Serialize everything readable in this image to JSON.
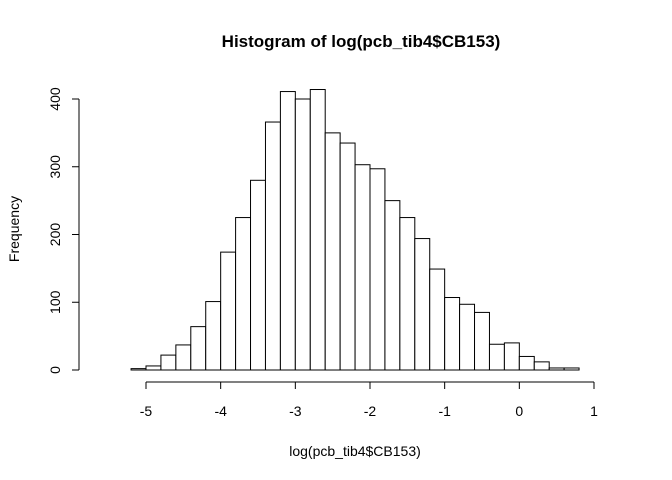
{
  "chart_data": {
    "type": "bar",
    "title": "Histogram of log(pcb_tib4$CB153)",
    "xlabel": "log(pcb_tib4$CB153)",
    "ylabel": "Frequency",
    "xlim": [
      -5.6,
      1.2
    ],
    "ylim": [
      0,
      420
    ],
    "xticks": [
      -5,
      -4,
      -3,
      -2,
      -1,
      0,
      1
    ],
    "yticks": [
      0,
      100,
      200,
      300,
      400
    ],
    "bin_width": 0.2,
    "bin_starts": [
      -5.2,
      -5.0,
      -4.8,
      -4.6,
      -4.4,
      -4.2,
      -4.0,
      -3.8,
      -3.6,
      -3.4,
      -3.2,
      -3.0,
      -2.8,
      -2.6,
      -2.4,
      -2.2,
      -2.0,
      -1.8,
      -1.6,
      -1.4,
      -1.2,
      -1.0,
      -0.8,
      -0.6,
      -0.4,
      -0.2,
      0.0,
      0.2,
      0.4,
      0.6
    ],
    "values": [
      2,
      6,
      22,
      37,
      64,
      101,
      174,
      225,
      280,
      366,
      411,
      400,
      414,
      350,
      335,
      303,
      297,
      250,
      225,
      194,
      149,
      107,
      97,
      85,
      38,
      40,
      20,
      12,
      3,
      3
    ],
    "grid": false,
    "colors": {
      "fill": "#ffffff",
      "stroke": "#000000"
    }
  }
}
